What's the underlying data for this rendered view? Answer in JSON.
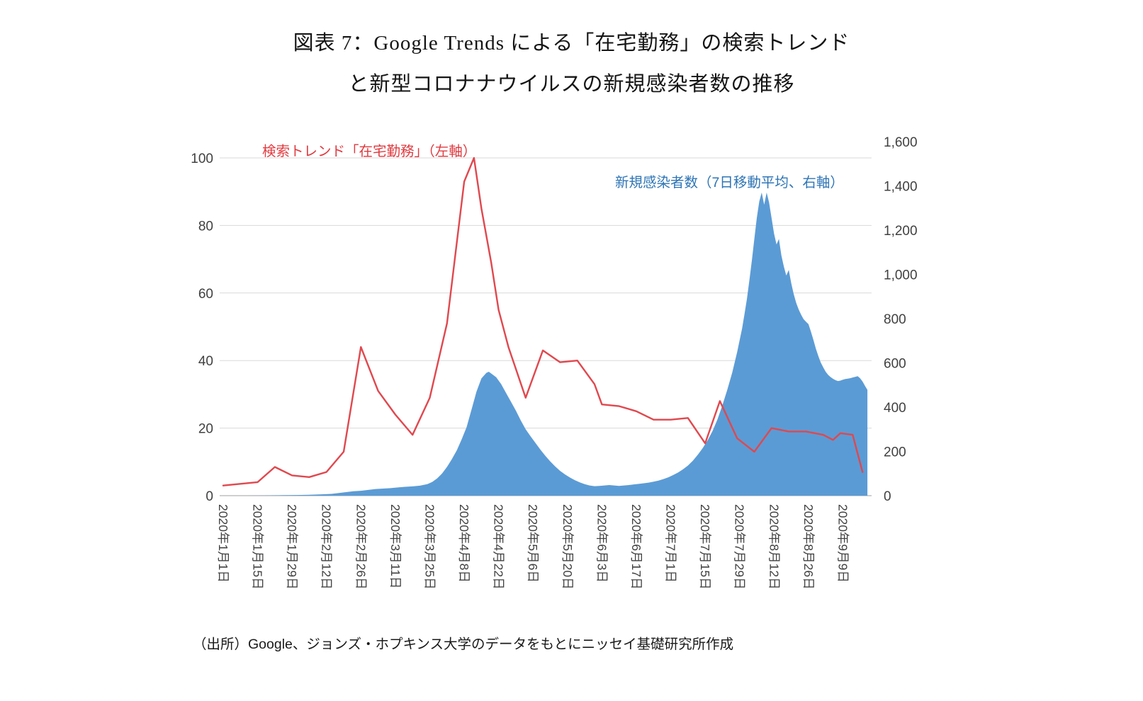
{
  "title": {
    "line1": "図表 7：Google Trends による「在宅勤務」の検索トレンド",
    "line2": "と新型コロナナウイルスの新規感染者数の推移"
  },
  "annotations": {
    "trend_label": "検索トレンド「在宅勤務」（左軸）",
    "cases_label": "新規感染者数（7日移動平均、右軸）"
  },
  "source": "（出所）Google、ジョンズ・ホプキンス大学のデータをもとにニッセイ基礎研究所作成",
  "colors": {
    "trend_line": "#E0484E",
    "trend_label": "#E0393E",
    "cases_fill": "#5B9BD5",
    "cases_label": "#2E75B6",
    "grid": "#D9D9D9",
    "axis_line": "#BFBFBF",
    "axis_text": "#404040"
  },
  "chart_data": {
    "type": "line+area",
    "title": "図表 7：Google Trends による「在宅勤務」の検索トレンドと新型コロナウイルスの新規感染者数の推移",
    "x_tick_step_days": 14,
    "x_tick_labels": [
      "2020年1月1日",
      "2020年1月15日",
      "2020年1月29日",
      "2020年2月12日",
      "2020年2月26日",
      "2020年3月11日",
      "2020年3月25日",
      "2020年4月8日",
      "2020年4月22日",
      "2020年5月6日",
      "2020年5月20日",
      "2020年6月3日",
      "2020年6月17日",
      "2020年7月1日",
      "2020年7月15日",
      "2020年7月29日",
      "2020年8月12日",
      "2020年8月26日",
      "2020年9月9日"
    ],
    "left_axis": {
      "range": [
        0,
        100
      ],
      "ticks": [
        0,
        20,
        40,
        60,
        80,
        100
      ],
      "grid": true
    },
    "right_axis": {
      "range": [
        0,
        1600
      ],
      "ticks": [
        "0",
        "200",
        "400",
        "600",
        "800",
        "1,000",
        "1,200",
        "1,400",
        "1,600"
      ],
      "grid": false
    },
    "series": [
      {
        "name": "検索トレンド「在宅勤務」（左軸）",
        "type": "line",
        "axis": "left",
        "color": "#E0484E",
        "points": [
          [
            "1/1",
            3
          ],
          [
            "1/8",
            3.5
          ],
          [
            "1/15",
            4
          ],
          [
            "1/22",
            8.5
          ],
          [
            "1/29",
            6
          ],
          [
            "2/5",
            5.5
          ],
          [
            "2/12",
            7
          ],
          [
            "2/19",
            13
          ],
          [
            "2/26",
            44
          ],
          [
            "3/4",
            31
          ],
          [
            "3/11",
            24
          ],
          [
            "3/18",
            18
          ],
          [
            "3/25",
            29
          ],
          [
            "4/1",
            51
          ],
          [
            "4/8",
            93
          ],
          [
            "4/12",
            100
          ],
          [
            "4/15",
            85
          ],
          [
            "4/19",
            69
          ],
          [
            "4/22",
            55
          ],
          [
            "4/26",
            44
          ],
          [
            "5/3",
            29
          ],
          [
            "5/10",
            43
          ],
          [
            "5/17",
            39.5
          ],
          [
            "5/24",
            40
          ],
          [
            "5/31",
            33
          ],
          [
            "6/3",
            27
          ],
          [
            "6/10",
            26.5
          ],
          [
            "6/17",
            25
          ],
          [
            "6/24",
            22.5
          ],
          [
            "7/1",
            22.5
          ],
          [
            "7/8",
            23
          ],
          [
            "7/15",
            15.5
          ],
          [
            "7/21",
            28
          ],
          [
            "7/28",
            17
          ],
          [
            "8/4",
            13
          ],
          [
            "8/11",
            20
          ],
          [
            "8/18",
            19
          ],
          [
            "8/25",
            19
          ],
          [
            "9/1",
            18
          ],
          [
            "9/5",
            16.5
          ],
          [
            "9/8",
            18.5
          ],
          [
            "9/13",
            18
          ],
          [
            "9/17",
            7
          ]
        ]
      },
      {
        "name": "新規感染者数（7日移動平均、右軸）",
        "type": "area",
        "axis": "right",
        "color": "#5B9BD5",
        "points": [
          [
            "1/1",
            0
          ],
          [
            "1/10",
            0
          ],
          [
            "1/20",
            1
          ],
          [
            "1/25",
            2
          ],
          [
            "1/31",
            3
          ],
          [
            "2/5",
            4
          ],
          [
            "2/10",
            6
          ],
          [
            "2/14",
            8
          ],
          [
            "2/17",
            12
          ],
          [
            "2/20",
            16
          ],
          [
            "2/23",
            20
          ],
          [
            "2/26",
            22
          ],
          [
            "2/29",
            26
          ],
          [
            "3/3",
            30
          ],
          [
            "3/6",
            32
          ],
          [
            "3/9",
            34
          ],
          [
            "3/12",
            37
          ],
          [
            "3/15",
            40
          ],
          [
            "3/18",
            42
          ],
          [
            "3/21",
            45
          ],
          [
            "3/24",
            52
          ],
          [
            "3/26",
            62
          ],
          [
            "3/28",
            78
          ],
          [
            "3/30",
            100
          ],
          [
            "4/1",
            130
          ],
          [
            "4/3",
            165
          ],
          [
            "4/5",
            205
          ],
          [
            "4/7",
            255
          ],
          [
            "4/9",
            310
          ],
          [
            "4/11",
            390
          ],
          [
            "4/13",
            470
          ],
          [
            "4/15",
            530
          ],
          [
            "4/17",
            555
          ],
          [
            "4/18",
            560
          ],
          [
            "4/19",
            552
          ],
          [
            "4/21",
            535
          ],
          [
            "4/23",
            505
          ],
          [
            "4/25",
            465
          ],
          [
            "4/27",
            425
          ],
          [
            "4/29",
            385
          ],
          [
            "5/1",
            340
          ],
          [
            "5/3",
            300
          ],
          [
            "5/5",
            268
          ],
          [
            "5/7",
            238
          ],
          [
            "5/9",
            208
          ],
          [
            "5/11",
            180
          ],
          [
            "5/13",
            155
          ],
          [
            "5/15",
            132
          ],
          [
            "5/17",
            112
          ],
          [
            "5/19",
            96
          ],
          [
            "5/21",
            82
          ],
          [
            "5/23",
            70
          ],
          [
            "5/25",
            60
          ],
          [
            "5/27",
            52
          ],
          [
            "5/29",
            46
          ],
          [
            "5/31",
            43
          ],
          [
            "6/2",
            44
          ],
          [
            "6/4",
            46
          ],
          [
            "6/6",
            48
          ],
          [
            "6/8",
            46
          ],
          [
            "6/10",
            44
          ],
          [
            "6/12",
            46
          ],
          [
            "6/14",
            48
          ],
          [
            "6/16",
            51
          ],
          [
            "6/18",
            53
          ],
          [
            "6/20",
            56
          ],
          [
            "6/22",
            59
          ],
          [
            "6/24",
            63
          ],
          [
            "6/26",
            68
          ],
          [
            "6/28",
            75
          ],
          [
            "6/30",
            83
          ],
          [
            "7/2",
            93
          ],
          [
            "7/4",
            105
          ],
          [
            "7/6",
            119
          ],
          [
            "7/8",
            136
          ],
          [
            "7/10",
            158
          ],
          [
            "7/12",
            185
          ],
          [
            "7/14",
            215
          ],
          [
            "7/16",
            250
          ],
          [
            "7/18",
            292
          ],
          [
            "7/20",
            345
          ],
          [
            "7/22",
            408
          ],
          [
            "7/24",
            478
          ],
          [
            "7/26",
            556
          ],
          [
            "7/28",
            648
          ],
          [
            "7/30",
            755
          ],
          [
            "7/31",
            820
          ],
          [
            "8/1",
            890
          ],
          [
            "8/2",
            975
          ],
          [
            "8/3",
            1065
          ],
          [
            "8/4",
            1160
          ],
          [
            "8/5",
            1255
          ],
          [
            "8/6",
            1330
          ],
          [
            "8/7",
            1370
          ],
          [
            "8/8",
            1315
          ],
          [
            "8/9",
            1370
          ],
          [
            "8/10",
            1325
          ],
          [
            "8/11",
            1255
          ],
          [
            "8/12",
            1185
          ],
          [
            "8/13",
            1135
          ],
          [
            "8/14",
            1160
          ],
          [
            "8/15",
            1085
          ],
          [
            "8/16",
            1035
          ],
          [
            "8/17",
            995
          ],
          [
            "8/18",
            1020
          ],
          [
            "8/19",
            960
          ],
          [
            "8/20",
            912
          ],
          [
            "8/21",
            872
          ],
          [
            "8/22",
            842
          ],
          [
            "8/23",
            818
          ],
          [
            "8/24",
            798
          ],
          [
            "8/25",
            786
          ],
          [
            "8/26",
            775
          ],
          [
            "8/27",
            742
          ],
          [
            "8/28",
            705
          ],
          [
            "8/29",
            665
          ],
          [
            "8/30",
            632
          ],
          [
            "8/31",
            602
          ],
          [
            "9/1",
            580
          ],
          [
            "9/2",
            560
          ],
          [
            "9/3",
            546
          ],
          [
            "9/4",
            536
          ],
          [
            "9/5",
            528
          ],
          [
            "9/6",
            522
          ],
          [
            "9/7",
            518
          ],
          [
            "9/8",
            520
          ],
          [
            "9/9",
            524
          ],
          [
            "9/10",
            527
          ],
          [
            "9/11",
            529
          ],
          [
            "9/12",
            531
          ],
          [
            "9/13",
            534
          ],
          [
            "9/14",
            537
          ],
          [
            "9/15",
            540
          ],
          [
            "9/16",
            531
          ],
          [
            "9/17",
            516
          ],
          [
            "9/18",
            496
          ],
          [
            "9/19",
            478
          ]
        ]
      }
    ]
  }
}
